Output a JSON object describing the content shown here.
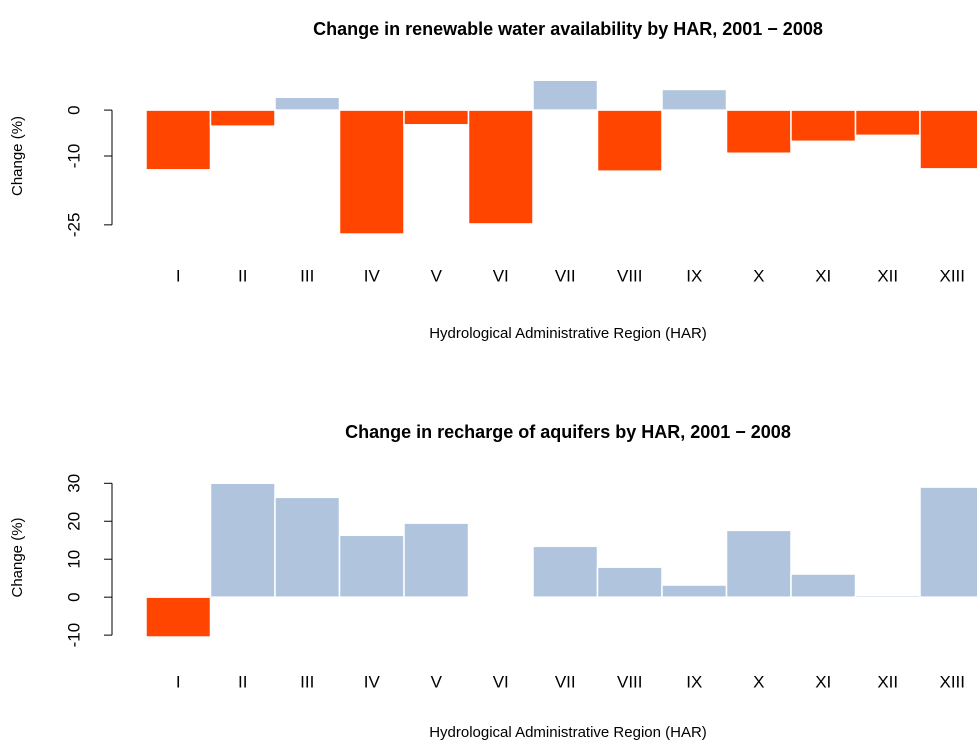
{
  "chart_data": [
    {
      "type": "bar",
      "title": "Change in renewable water availability by HAR, 2001 − 2008",
      "xlabel": "Hydrological Administrative Region (HAR)",
      "ylabel": "Change (%)",
      "categories": [
        "I",
        "II",
        "III",
        "IV",
        "V",
        "VI",
        "VII",
        "VIII",
        "IX",
        "X",
        "XI",
        "XII",
        "XIII"
      ],
      "values": [
        -13,
        -3.5,
        2.8,
        -27,
        -3.2,
        -24.8,
        6.5,
        -13.3,
        4.5,
        -9.4,
        -6.8,
        -5.5,
        -12.8
      ],
      "positive_color": "#b0c4de",
      "negative_color": "#ff4500",
      "ylim": [
        -28.3,
        8.3
      ],
      "yticks": [
        -25,
        -10,
        0
      ]
    },
    {
      "type": "bar",
      "title": "Change in recharge of aquifers by HAR, 2001 − 2008",
      "xlabel": "Hydrological Administrative Region (HAR)",
      "ylabel": "Change (%)",
      "categories": [
        "I",
        "II",
        "III",
        "IV",
        "V",
        "VI",
        "VII",
        "VIII",
        "IX",
        "X",
        "XI",
        "XII",
        "XIII"
      ],
      "values": [
        -10.5,
        30,
        26.3,
        16.3,
        19.5,
        0,
        13.4,
        7.9,
        3.2,
        17.6,
        6.1,
        0.5,
        29
      ],
      "positive_color": "#b0c4de",
      "negative_color": "#ff4500",
      "ylim": [
        -12.6,
        33.5
      ],
      "yticks": [
        -10,
        0,
        10,
        20,
        30
      ]
    }
  ]
}
